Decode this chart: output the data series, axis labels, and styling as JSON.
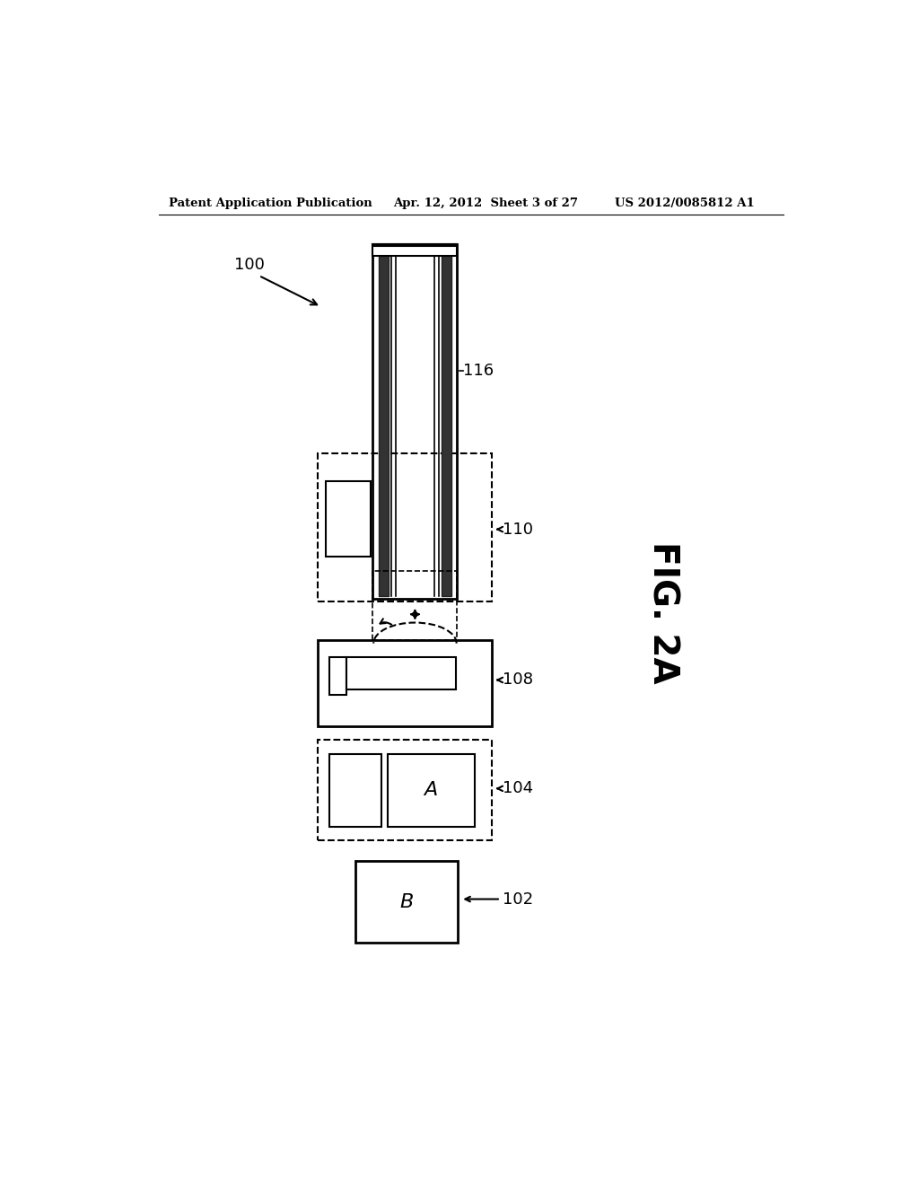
{
  "header_left": "Patent Application Publication",
  "header_center": "Apr. 12, 2012  Sheet 3 of 27",
  "header_right": "US 2012/0085812 A1",
  "fig_label": "FIG. 2A",
  "label_100": "100",
  "label_102": "102",
  "label_104": "104",
  "label_108": "108",
  "label_110": "110",
  "label_116": "116",
  "bg_color": "#ffffff",
  "line_color": "#000000"
}
